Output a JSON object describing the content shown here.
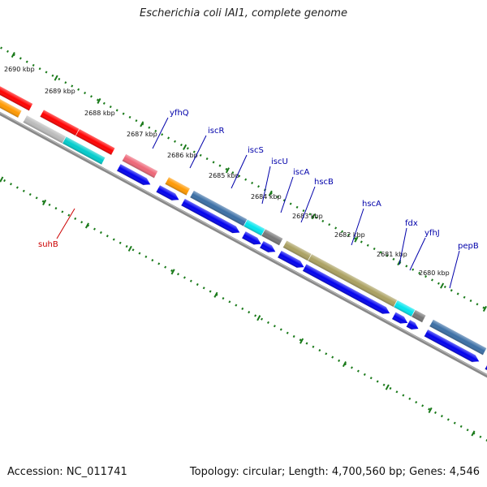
{
  "title": "Escherichia coli IAI1, complete genome",
  "footer": {
    "accession": "Accession: NC_011741",
    "summary": "Topology: circular; Length: 4,700,560 bp; Genes: 4,546"
  },
  "colors": {
    "gene_blue": "#0000ee",
    "label_forward": "#0000aa",
    "label_reverse": "#cc0000",
    "tick_green": "#1a7a1a",
    "backbone": "#888888"
  },
  "scale_labels": [
    "2690 kbp",
    "2689 kbp",
    "2688 kbp",
    "2687 kbp",
    "2686 kbp",
    "2685 kbp",
    "2684 kbp",
    "2683 kbp",
    "2682 kbp",
    "2681 kbp",
    "2680 kbp"
  ],
  "gene_labels": [
    {
      "id": "yfhQ",
      "text": "yfhQ",
      "strand": "forward"
    },
    {
      "id": "iscR",
      "text": "iscR",
      "strand": "forward"
    },
    {
      "id": "iscS",
      "text": "iscS",
      "strand": "forward"
    },
    {
      "id": "iscU",
      "text": "iscU",
      "strand": "forward"
    },
    {
      "id": "iscA",
      "text": "iscA",
      "strand": "forward"
    },
    {
      "id": "hscB",
      "text": "hscB",
      "strand": "forward"
    },
    {
      "id": "hscA",
      "text": "hscA",
      "strand": "forward"
    },
    {
      "id": "fdx",
      "text": "fdx",
      "strand": "forward"
    },
    {
      "id": "yfhJ",
      "text": "yfhJ",
      "strand": "forward"
    },
    {
      "id": "pepB",
      "text": "pepB",
      "strand": "forward"
    },
    {
      "id": "suhB",
      "text": "suhB",
      "strand": "reverse"
    }
  ]
}
